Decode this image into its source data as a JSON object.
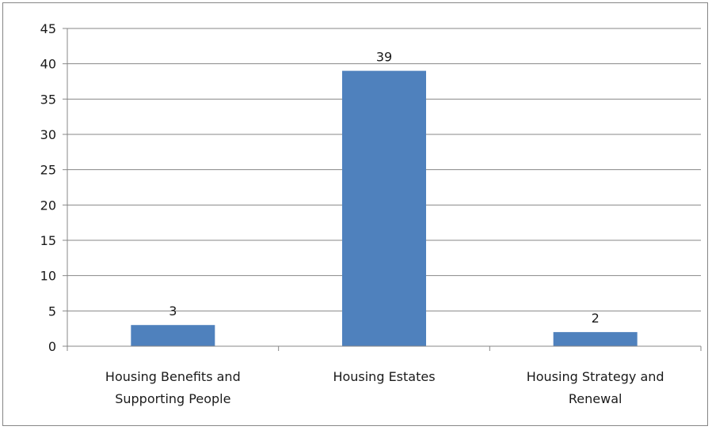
{
  "chart_data": {
    "type": "bar",
    "title": "",
    "xlabel": "",
    "ylabel": "",
    "categories": [
      [
        "Housing Benefits and",
        "Supporting People"
      ],
      [
        "Housing Estates"
      ],
      [
        "Housing Strategy and",
        "Renewal"
      ]
    ],
    "values": [
      3,
      39,
      2
    ],
    "ylim": [
      0,
      45
    ],
    "yticks": [
      0,
      5,
      10,
      15,
      20,
      25,
      30,
      35,
      40,
      45
    ],
    "grid": true,
    "legend": "none",
    "data_labels": [
      "3",
      "39",
      "2"
    ],
    "bar_color": "#4f81bd",
    "grid_color": "#878787",
    "axis_color": "#878787"
  }
}
